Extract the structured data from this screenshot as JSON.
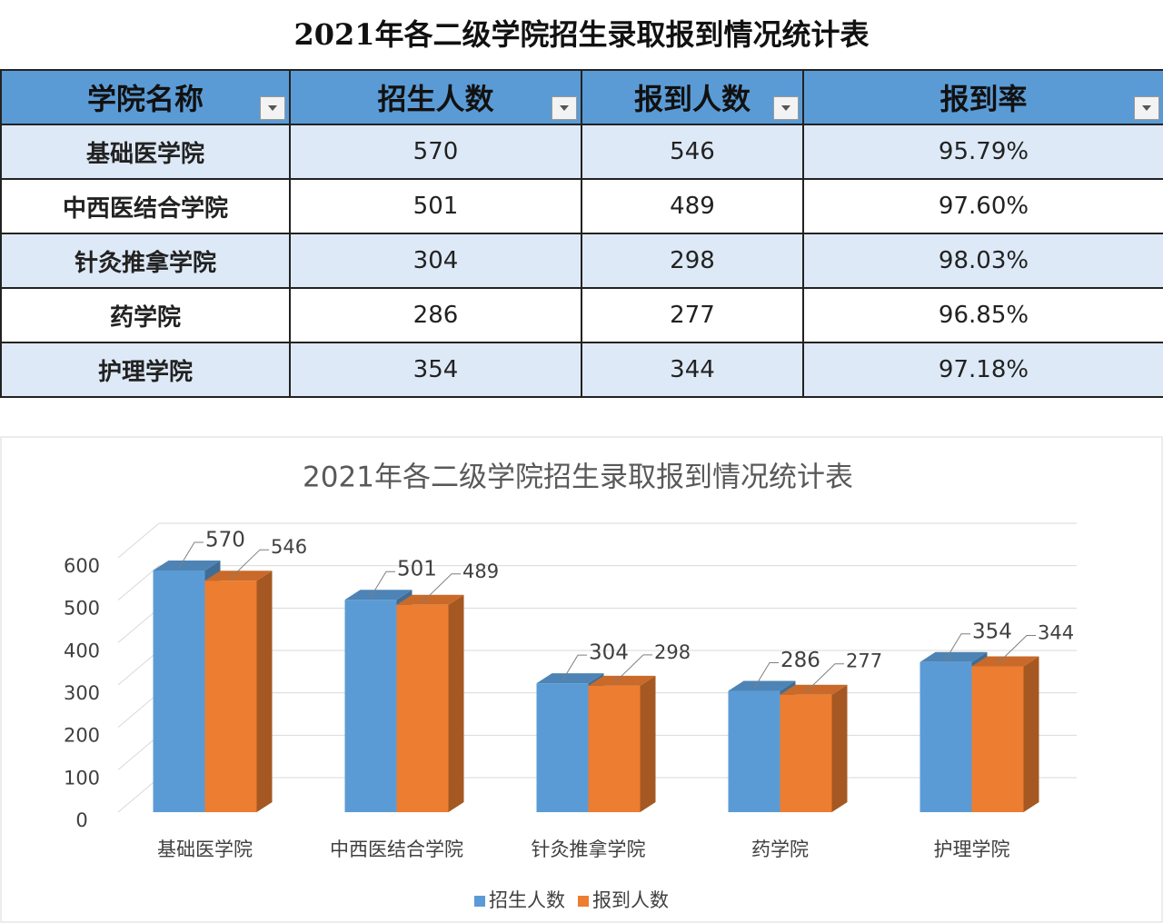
{
  "table": {
    "title": "2021年各二级学院招生录取报到情况统计表",
    "header": [
      "学院名称",
      "招生人数",
      "报到人数",
      "报到率"
    ],
    "rows": [
      [
        "基础医学院",
        570,
        546,
        "95.79%"
      ],
      [
        "中西医结合学院",
        501,
        489,
        "97.60%"
      ],
      [
        "针灸推拿学院",
        304,
        298,
        "98.03%"
      ],
      [
        "药学院",
        286,
        277,
        "96.85%"
      ],
      [
        "护理学院",
        354,
        344,
        "97.18%"
      ]
    ]
  },
  "chart_data": {
    "type": "bar",
    "title": "2021年各二级学院招生录取报到情况统计表",
    "categories": [
      "基础医学院",
      "中西医结合学院",
      "针灸推拿学院",
      "药学院",
      "护理学院"
    ],
    "series": [
      {
        "name": "招生人数",
        "color": "#5b9bd5",
        "values": [
          570,
          501,
          304,
          286,
          354
        ]
      },
      {
        "name": "报到人数",
        "color": "#ed7d31",
        "values": [
          546,
          489,
          298,
          277,
          344
        ]
      }
    ],
    "ylim": [
      0,
      600
    ],
    "yticks": [
      0,
      100,
      200,
      300,
      400,
      500,
      600
    ],
    "grid": true,
    "legend": "bottom"
  }
}
